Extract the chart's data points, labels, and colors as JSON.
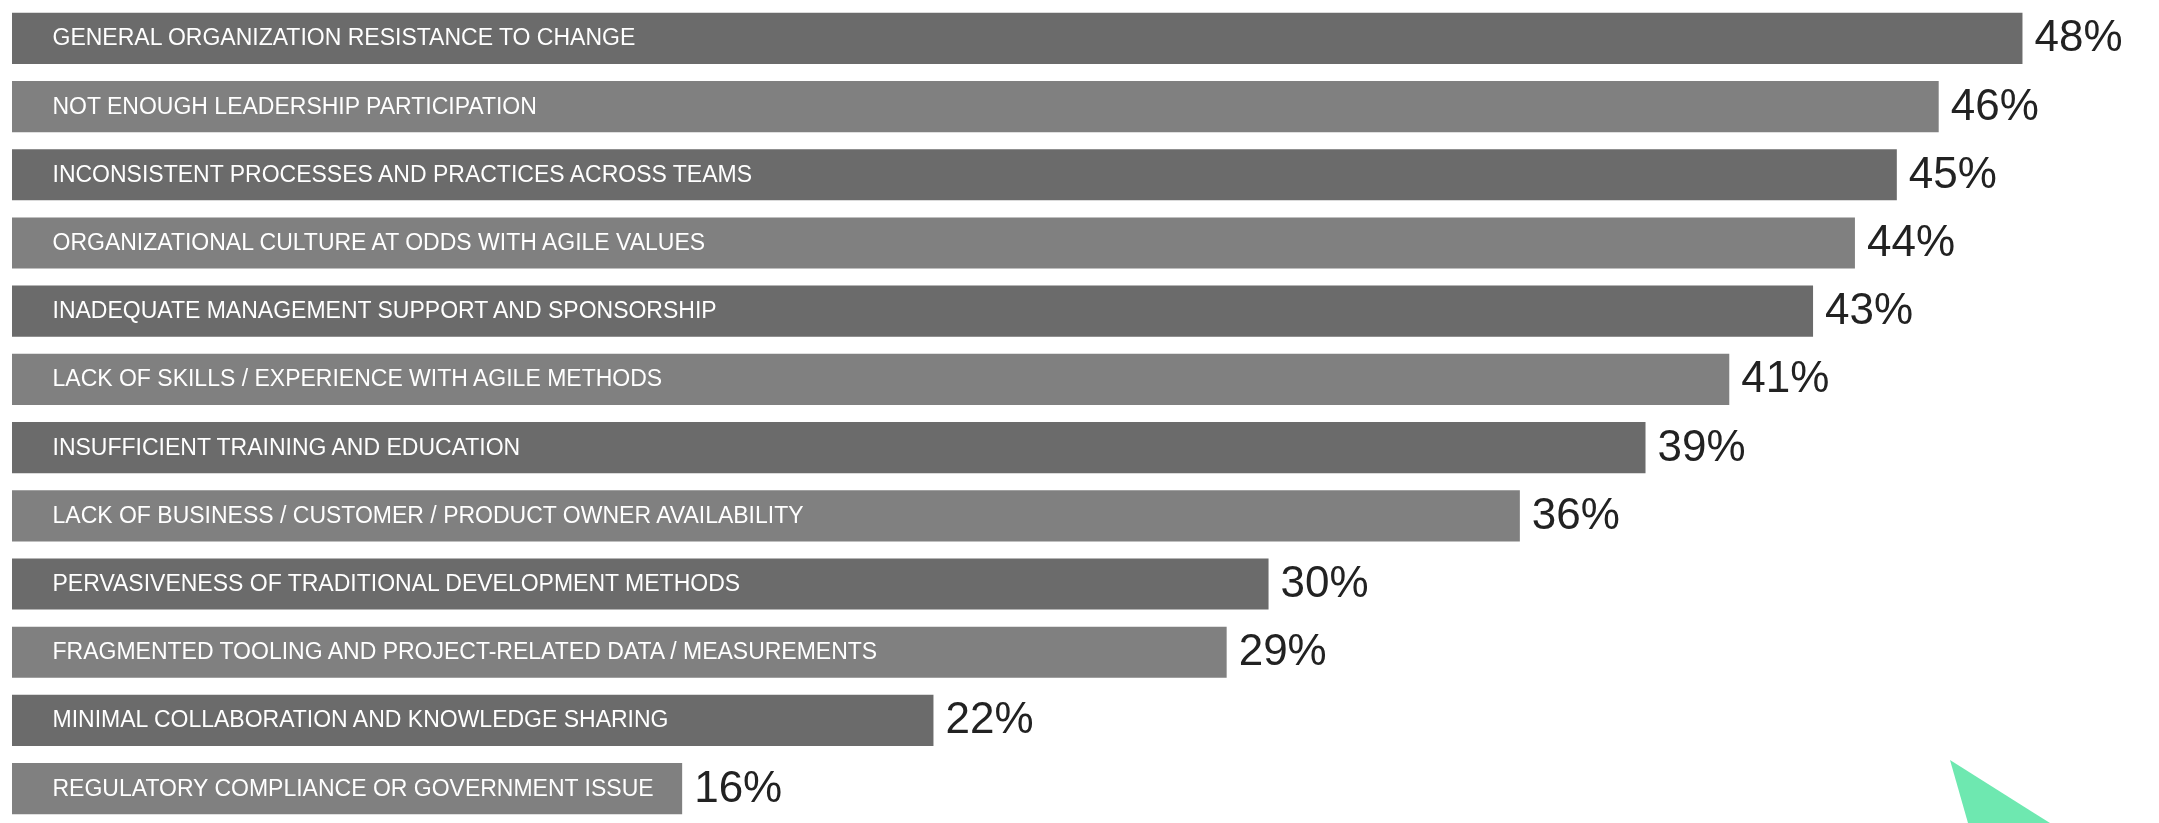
{
  "chart_data": {
    "type": "bar",
    "orientation": "horizontal",
    "categories": [
      "GENERAL ORGANIZATION RESISTANCE TO CHANGE",
      "NOT ENOUGH LEADERSHIP PARTICIPATION",
      "INCONSISTENT PROCESSES AND PRACTICES ACROSS TEAMS",
      "ORGANIZATIONAL CULTURE AT ODDS WITH AGILE VALUES",
      "INADEQUATE MANAGEMENT SUPPORT AND SPONSORSHIP",
      "LACK OF SKILLS / EXPERIENCE WITH AGILE METHODS",
      "INSUFFICIENT TRAINING AND EDUCATION",
      "LACK OF BUSINESS / CUSTOMER / PRODUCT OWNER AVAILABILITY",
      "PERVASIVENESS OF TRADITIONAL DEVELOPMENT METHODS",
      "FRAGMENTED TOOLING AND PROJECT-RELATED DATA / MEASUREMENTS",
      "MINIMAL COLLABORATION AND KNOWLEDGE SHARING",
      "REGULATORY COMPLIANCE OR GOVERNMENT ISSUE"
    ],
    "values": [
      48,
      46,
      45,
      44,
      43,
      41,
      39,
      36,
      30,
      29,
      22,
      16
    ],
    "value_labels": [
      "48%",
      "46%",
      "45%",
      "44%",
      "43%",
      "41%",
      "39%",
      "36%",
      "30%",
      "29%",
      "22%",
      "16%"
    ],
    "colors": [
      "#6b6b6b",
      "#808080",
      "#6b6b6b",
      "#808080",
      "#6b6b6b",
      "#808080",
      "#6b6b6b",
      "#808080",
      "#6b6b6b",
      "#808080",
      "#6b6b6b",
      "#808080"
    ]
  }
}
